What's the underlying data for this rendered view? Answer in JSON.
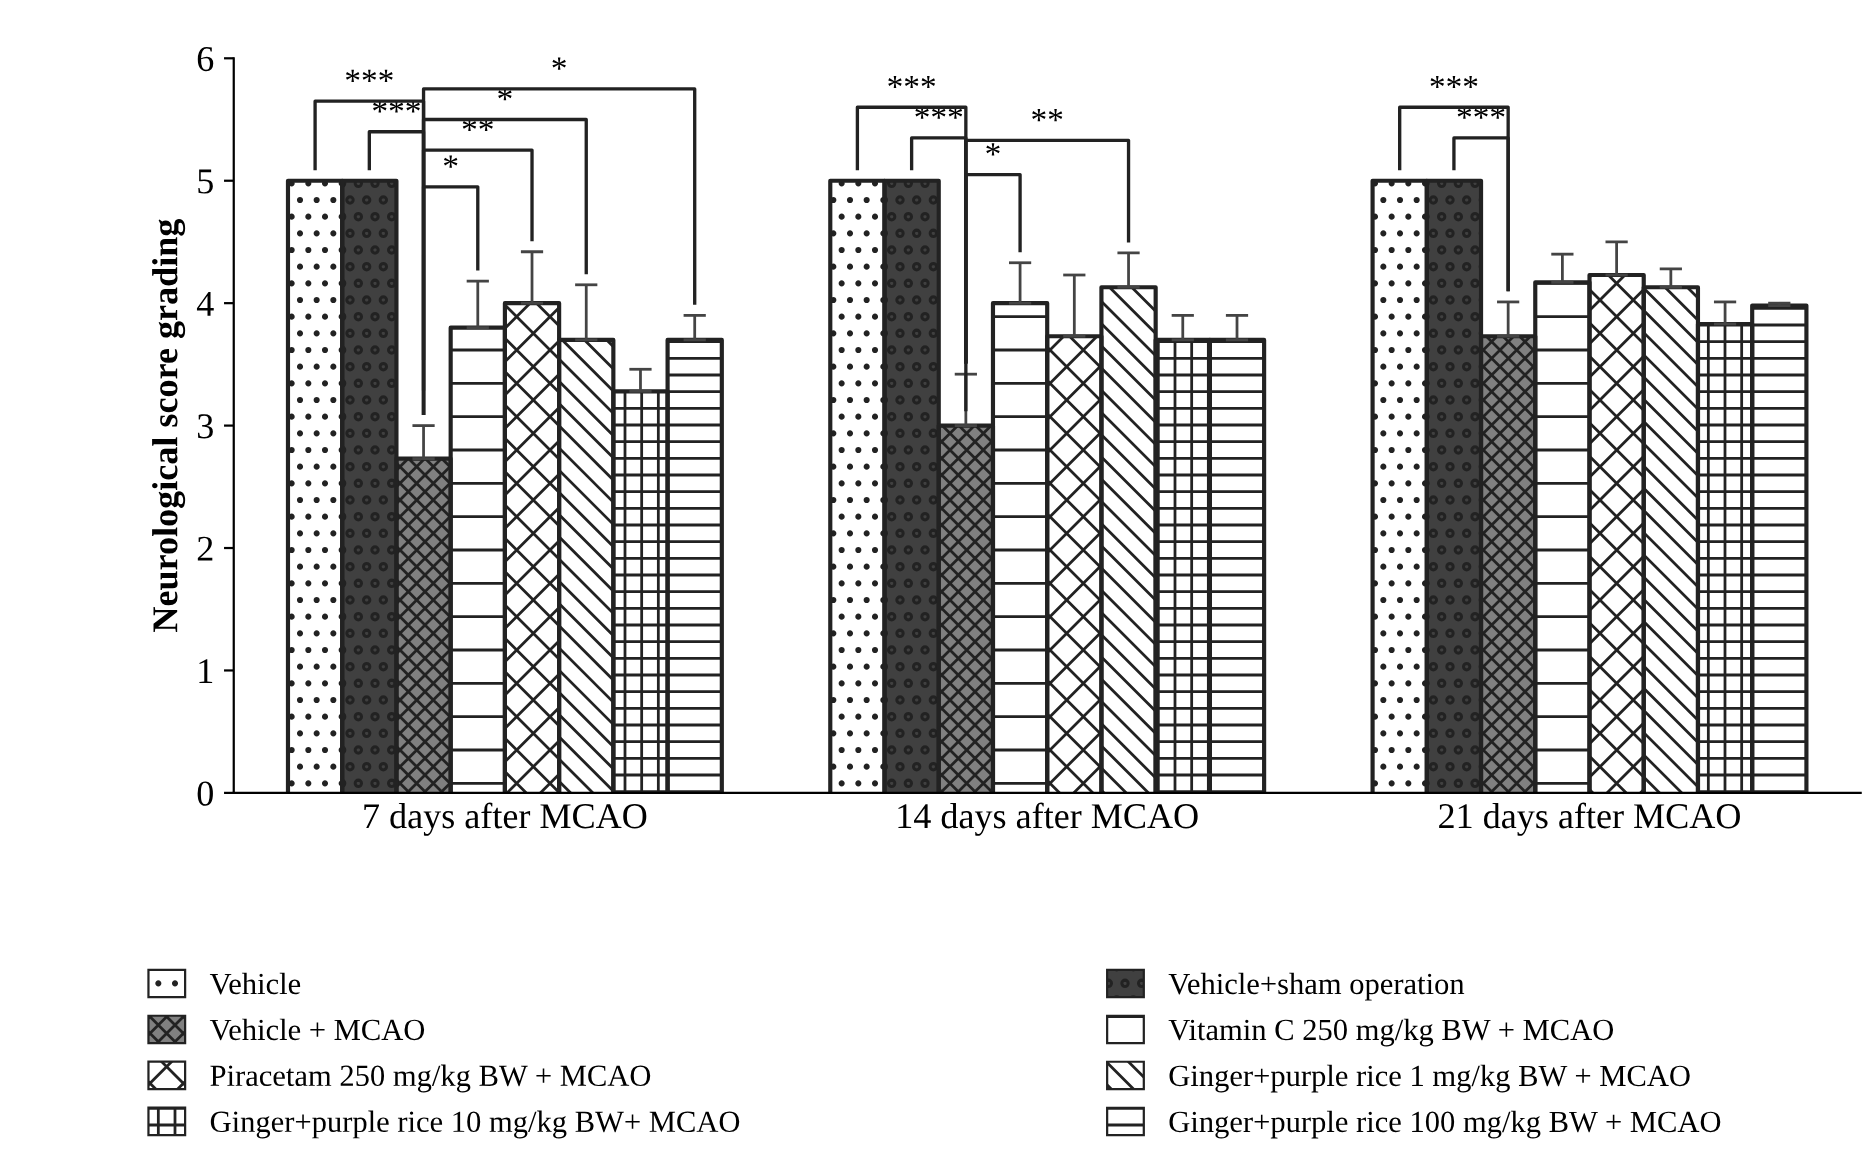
{
  "chart_data": {
    "type": "bar",
    "ylabel": "Neurological score grading",
    "categories": [
      "7 days after MCAO",
      "14 days after MCAO",
      "21 days after MCAO"
    ],
    "ylim": [
      0,
      6
    ],
    "yticks": [
      0,
      1,
      2,
      3,
      4,
      5,
      6
    ],
    "grid": false,
    "legend": "bottom",
    "series": [
      {
        "name": "Vehicle",
        "color": "#ffffff",
        "values": [
          5,
          5,
          5
        ]
      },
      {
        "name": "Vehicle+sham operation",
        "color": "#404040",
        "values": [
          5,
          5,
          5
        ]
      },
      {
        "name": "Vehicle + MCAO",
        "color": "#808080",
        "values": [
          2.73,
          3.0,
          3.73
        ],
        "errors": [
          0.27,
          0.42,
          0.28
        ]
      },
      {
        "name": "Vitamin C 250 mg/kg BW + MCAO",
        "color": "#ffffff",
        "values": [
          3.8,
          4.0,
          4.17
        ],
        "errors": [
          0.38,
          0.33,
          0.23
        ]
      },
      {
        "name": "Piracetam 250 mg/kg BW + MCAO",
        "color": "#ffffff",
        "values": [
          4.0,
          3.73,
          4.23
        ],
        "errors": [
          0.42,
          0.5,
          0.27
        ]
      },
      {
        "name": "Ginger+purple rice 1 mg/kg BW + MCAO",
        "color": "#ffffff",
        "values": [
          3.7,
          4.13,
          4.13
        ],
        "errors": [
          0.45,
          0.28,
          0.15
        ]
      },
      {
        "name": "Ginger+purple rice 10 mg/kg BW+ MCAO",
        "color": "#ffffff",
        "values": [
          3.28,
          3.7,
          3.83
        ],
        "errors": [
          0.18,
          0.2,
          0.18
        ]
      },
      {
        "name": "Ginger+purple rice 100 mg/kg BW + MCAO",
        "color": "#ffffff",
        "values": [
          3.7,
          3.7,
          3.98
        ],
        "errors": [
          0.2,
          0.2,
          0.02
        ]
      }
    ],
    "annotations": [
      "***",
      "***",
      "*",
      "*",
      "**",
      "*",
      "***",
      "***",
      "**",
      "*",
      "***",
      "***"
    ]
  }
}
